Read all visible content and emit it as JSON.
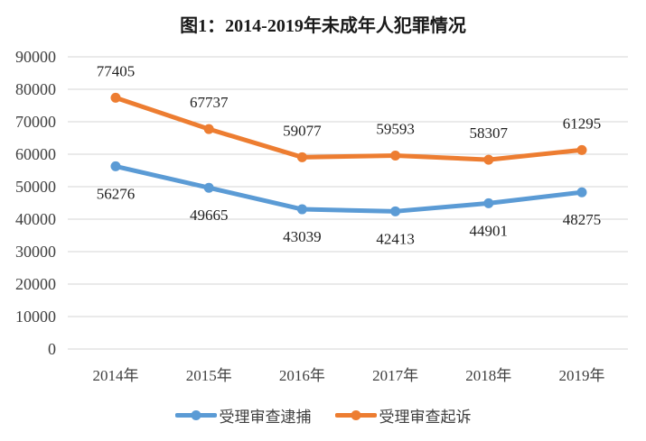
{
  "chart_data": {
    "type": "line",
    "title": "图1：2014-2019年未成年人犯罪情况",
    "categories": [
      "2014年",
      "2015年",
      "2016年",
      "2017年",
      "2018年",
      "2019年"
    ],
    "series": [
      {
        "name": "受理审查逮捕",
        "color": "#5B9BD5",
        "values": [
          56276,
          49665,
          43039,
          42413,
          44901,
          48275
        ],
        "label_position": "below"
      },
      {
        "name": "受理审查起诉",
        "color": "#ED7D31",
        "values": [
          77405,
          67737,
          59077,
          59593,
          58307,
          61295
        ],
        "label_position": "above"
      }
    ],
    "ylim": [
      0,
      90000
    ],
    "ytick_step": 10000,
    "ytick_labels": [
      "0",
      "10000",
      "20000",
      "30000",
      "40000",
      "50000",
      "60000",
      "70000",
      "80000",
      "90000"
    ],
    "grid": true,
    "gridline_color": "#D6D6D6",
    "legend_position": "bottom",
    "axis_label_color": "#3f3f3f",
    "data_label_color": "#1f1f1f"
  }
}
